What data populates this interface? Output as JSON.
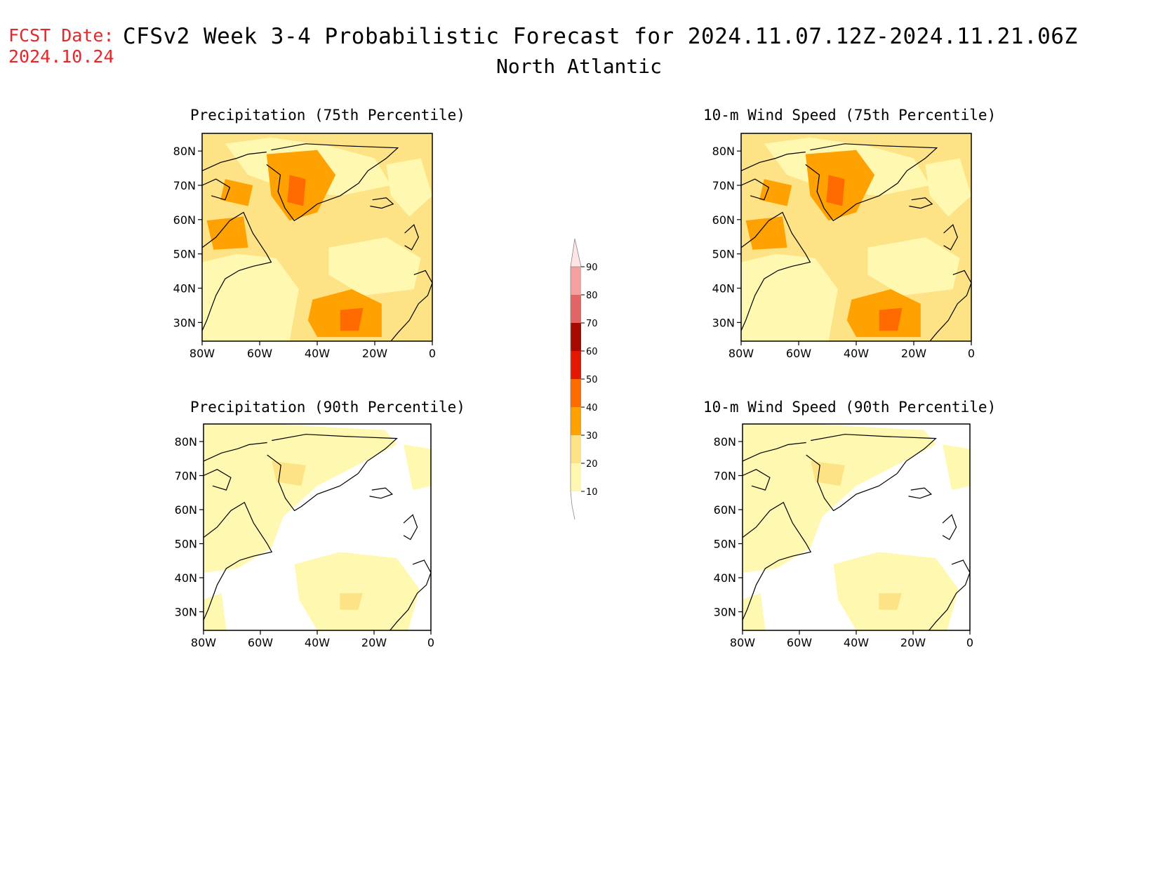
{
  "header": {
    "fcst_label": "FCST Date:",
    "fcst_date": "2024.10.24",
    "title": "CFSv2 Week 3-4 Probabilistic Forecast for 2024.11.07.12Z-2024.11.21.06Z",
    "region": "North Atlantic"
  },
  "panels": [
    {
      "title": "Precipitation (75th Percentile)",
      "palette": "high"
    },
    {
      "title": "10-m Wind Speed (75th Percentile)",
      "palette": "high"
    },
    {
      "title": "Precipitation (90th Percentile)",
      "palette": "low"
    },
    {
      "title": "10-m Wind Speed (90th Percentile)",
      "palette": "low"
    }
  ],
  "axes": {
    "lat_labels": [
      "80N",
      "70N",
      "60N",
      "50N",
      "40N",
      "30N"
    ],
    "lon_labels": [
      "80W",
      "60W",
      "40W",
      "20W",
      "0"
    ]
  },
  "colorbar": {
    "levels": [
      "10",
      "20",
      "30",
      "40",
      "50",
      "60",
      "70",
      "80",
      "90"
    ],
    "colors": [
      "#fff8b0",
      "#fde385",
      "#ffa100",
      "#ff6b00",
      "#e31800",
      "#a50a00",
      "#e26565",
      "#f5a0a0",
      "#ffe6e6",
      "#ffffff"
    ]
  }
}
